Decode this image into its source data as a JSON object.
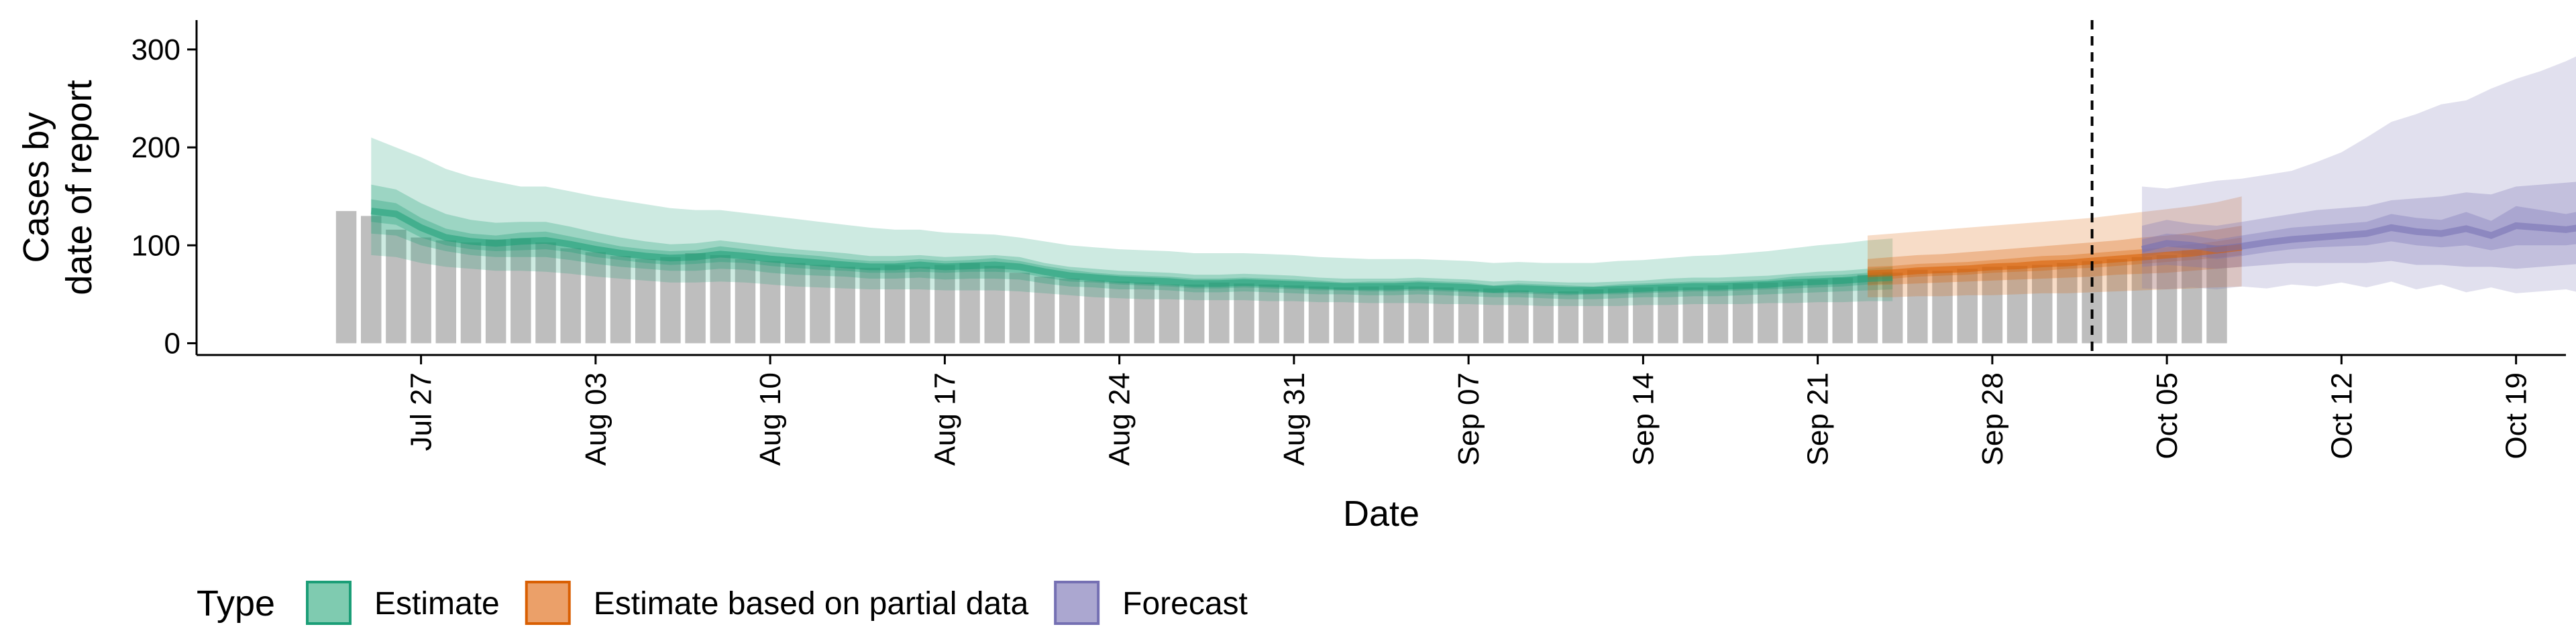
{
  "chart_data": {
    "type": "area",
    "xlabel": "Date",
    "ylabel_lines": [
      "Cases by",
      "date of report"
    ],
    "x_ticks": [
      "2020-07-27",
      "2020-08-03",
      "2020-08-10",
      "2020-08-17",
      "2020-08-24",
      "2020-08-31",
      "2020-09-07",
      "2020-09-14",
      "2020-09-21",
      "2020-09-28",
      "2020-10-05",
      "2020-10-12",
      "2020-10-19"
    ],
    "x_tick_labels": [
      "Jul 27",
      "Aug 03",
      "Aug 10",
      "Aug 17",
      "Aug 24",
      "Aug 31",
      "Sep 07",
      "Sep 14",
      "Sep 21",
      "Sep 28",
      "Oct 05",
      "Oct 12",
      "Oct 19"
    ],
    "xlim": [
      "2020-07-18",
      "2020-10-21"
    ],
    "y_ticks": [
      0,
      100,
      200,
      300
    ],
    "ylim": [
      -12,
      330
    ],
    "forecast_start_line": "2020-10-02",
    "reported_cases": {
      "start_date": "2020-07-24",
      "color": "#bebebe",
      "values": [
        135,
        130,
        116,
        108,
        105,
        103,
        106,
        107,
        103,
        97,
        93,
        89,
        86,
        88,
        92,
        90,
        86,
        84,
        82,
        80,
        78,
        77,
        80,
        78,
        80,
        82,
        79,
        72,
        68,
        66,
        64,
        63,
        62,
        60,
        60,
        62,
        61,
        60,
        59,
        58,
        57,
        58,
        59,
        58,
        57,
        55,
        56,
        54,
        52,
        53,
        55,
        56,
        57,
        58,
        57,
        59,
        61,
        62,
        63,
        65,
        67,
        70,
        72,
        75,
        74,
        76,
        78,
        79,
        80,
        82,
        84,
        86,
        88,
        90,
        95,
        100
      ]
    },
    "legend": {
      "title": "Type",
      "position": "bottom-left",
      "entries": [
        {
          "label": "Estimate",
          "fill": "#7fcbb0",
          "stroke": "#1b9e77"
        },
        {
          "label": "Estimate based on partial data",
          "fill": "#eba069",
          "stroke": "#d95f02"
        },
        {
          "label": "Forecast",
          "fill": "#aba7d0",
          "stroke": "#7570b3"
        }
      ]
    },
    "series": [
      {
        "name": "Estimate",
        "color": "#1b9e77",
        "start_date": "2020-07-25",
        "median": [
          135,
          132,
          118,
          108,
          104,
          102,
          104,
          105,
          101,
          96,
          92,
          89,
          87,
          88,
          91,
          89,
          86,
          84,
          82,
          80,
          78,
          78,
          80,
          78,
          79,
          80,
          78,
          73,
          69,
          67,
          65,
          64,
          63,
          61,
          61,
          62,
          61,
          60,
          59,
          58,
          58,
          58,
          59,
          58,
          57,
          55,
          56,
          55,
          54,
          54,
          55,
          56,
          57,
          58,
          58,
          59,
          60,
          62,
          63,
          64,
          66,
          67
        ],
        "low90": [
          90,
          88,
          82,
          78,
          76,
          74,
          74,
          73,
          71,
          68,
          66,
          64,
          62,
          62,
          63,
          62,
          60,
          58,
          57,
          56,
          55,
          55,
          55,
          54,
          54,
          54,
          53,
          51,
          49,
          47,
          46,
          45,
          45,
          44,
          44,
          44,
          43,
          43,
          42,
          42,
          41,
          41,
          41,
          40,
          40,
          39,
          39,
          38,
          38,
          38,
          38,
          39,
          39,
          40,
          40,
          40,
          41,
          41,
          42,
          42,
          43,
          43
        ],
        "high90": [
          210,
          200,
          190,
          178,
          170,
          165,
          160,
          160,
          155,
          150,
          146,
          142,
          138,
          136,
          136,
          133,
          130,
          127,
          124,
          121,
          118,
          116,
          116,
          113,
          112,
          111,
          108,
          104,
          100,
          98,
          96,
          95,
          94,
          92,
          92,
          92,
          91,
          90,
          88,
          87,
          86,
          86,
          86,
          85,
          84,
          82,
          83,
          82,
          82,
          82,
          84,
          85,
          87,
          89,
          90,
          92,
          94,
          97,
          100,
          102,
          105,
          107
        ],
        "low50": [
          112,
          110,
          100,
          94,
          90,
          88,
          88,
          88,
          85,
          81,
          78,
          76,
          74,
          74,
          76,
          75,
          72,
          70,
          69,
          68,
          66,
          66,
          67,
          65,
          66,
          66,
          65,
          61,
          58,
          57,
          55,
          55,
          54,
          52,
          52,
          53,
          52,
          51,
          50,
          50,
          49,
          49,
          50,
          49,
          48,
          47,
          47,
          46,
          45,
          45,
          46,
          47,
          47,
          48,
          48,
          49,
          50,
          51,
          52,
          53,
          54,
          55
        ],
        "high50": [
          162,
          157,
          143,
          132,
          126,
          123,
          124,
          124,
          119,
          113,
          108,
          104,
          101,
          102,
          105,
          102,
          99,
          96,
          94,
          92,
          89,
          89,
          90,
          88,
          89,
          90,
          88,
          82,
          78,
          76,
          74,
          73,
          72,
          70,
          70,
          71,
          70,
          69,
          67,
          66,
          66,
          66,
          67,
          66,
          65,
          63,
          64,
          63,
          62,
          62,
          63,
          64,
          66,
          67,
          67,
          68,
          69,
          71,
          73,
          74,
          76,
          78
        ],
        "low20": [
          124,
          121,
          108,
          100,
          96,
          94,
          95,
          96,
          93,
          88,
          85,
          82,
          80,
          81,
          83,
          82,
          79,
          77,
          75,
          74,
          72,
          72,
          73,
          72,
          73,
          73,
          72,
          67,
          63,
          62,
          60,
          59,
          58,
          56,
          56,
          57,
          56,
          55,
          54,
          54,
          53,
          53,
          54,
          53,
          52,
          51,
          51,
          50,
          49,
          50,
          50,
          51,
          52,
          53,
          53,
          54,
          55,
          56,
          57,
          58,
          60,
          61
        ],
        "high20": [
          147,
          143,
          128,
          117,
          112,
          110,
          113,
          114,
          109,
          104,
          99,
          96,
          94,
          95,
          99,
          96,
          93,
          91,
          89,
          86,
          84,
          84,
          86,
          84,
          85,
          87,
          84,
          79,
          75,
          72,
          70,
          69,
          68,
          66,
          66,
          67,
          66,
          65,
          64,
          62,
          63,
          63,
          64,
          63,
          62,
          59,
          61,
          60,
          59,
          58,
          60,
          61,
          62,
          63,
          63,
          64,
          65,
          68,
          69,
          70,
          72,
          73
        ]
      },
      {
        "name": "Estimate based on partial data",
        "color": "#d95f02",
        "start_date": "2020-09-23",
        "median": [
          71,
          72,
          74,
          75,
          76,
          78,
          79,
          81,
          82,
          84,
          86,
          88,
          90,
          92,
          95,
          98
        ],
        "low90": [
          47,
          47,
          48,
          48,
          49,
          49,
          50,
          51,
          51,
          52,
          53,
          54,
          55,
          56,
          57,
          58
        ],
        "high90": [
          110,
          112,
          114,
          116,
          118,
          120,
          122,
          124,
          126,
          128,
          131,
          134,
          137,
          140,
          144,
          150
        ],
        "low50": [
          59,
          60,
          61,
          62,
          63,
          64,
          65,
          66,
          67,
          68,
          70,
          71,
          72,
          74,
          76,
          78
        ],
        "high50": [
          86,
          88,
          90,
          91,
          93,
          95,
          97,
          99,
          101,
          103,
          105,
          108,
          110,
          113,
          116,
          120
        ],
        "low20": [
          65,
          66,
          68,
          69,
          70,
          72,
          73,
          74,
          76,
          77,
          79,
          81,
          83,
          85,
          87,
          90
        ],
        "high20": [
          78,
          79,
          81,
          82,
          83,
          85,
          87,
          89,
          90,
          92,
          94,
          96,
          98,
          101,
          104,
          108
        ]
      },
      {
        "name": "Forecast",
        "color": "#7570b3",
        "start_date": "2020-10-04",
        "median": [
          96,
          102,
          100,
          96,
          99,
          103,
          106,
          108,
          110,
          112,
          118,
          114,
          112,
          117,
          110,
          120,
          118,
          116,
          120,
          122
        ],
        "low90": [
          56,
          55,
          57,
          55,
          58,
          56,
          60,
          58,
          62,
          57,
          63,
          55,
          60,
          52,
          57,
          51,
          53,
          55,
          49,
          48
        ],
        "high90": [
          160,
          158,
          162,
          166,
          168,
          172,
          176,
          185,
          195,
          210,
          226,
          234,
          244,
          248,
          260,
          270,
          278,
          288,
          300,
          318
        ],
        "low50": [
          78,
          80,
          78,
          76,
          78,
          80,
          82,
          82,
          82,
          82,
          84,
          80,
          80,
          78,
          78,
          76,
          78,
          80,
          82,
          84
        ],
        "high50": [
          120,
          126,
          122,
          120,
          124,
          128,
          132,
          136,
          138,
          140,
          146,
          148,
          150,
          154,
          152,
          160,
          162,
          164,
          166,
          170
        ],
        "low20": [
          88,
          93,
          90,
          86,
          89,
          93,
          96,
          98,
          99,
          100,
          104,
          100,
          98,
          100,
          95,
          100,
          100,
          100,
          103,
          105
        ],
        "high20": [
          106,
          112,
          110,
          106,
          110,
          114,
          118,
          120,
          122,
          124,
          132,
          128,
          126,
          134,
          125,
          140,
          136,
          132,
          137,
          139
        ]
      }
    ]
  }
}
